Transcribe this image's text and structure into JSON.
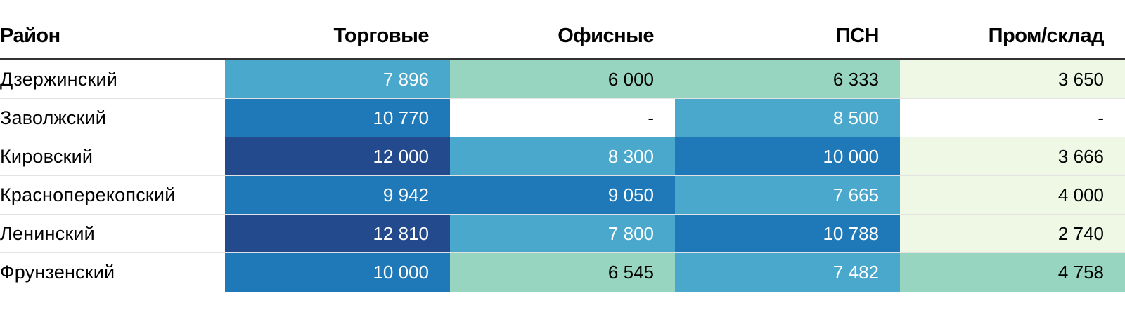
{
  "chart_data": {
    "type": "table",
    "columns": [
      "Район",
      "Торговые",
      "Офисные",
      "ПСН",
      "Пром/склад"
    ],
    "rows": [
      {
        "label": "Дзержинский",
        "values": [
          "7 896",
          "6 000",
          "6 333",
          "3 650"
        ],
        "colors": [
          "#4aa8cc",
          "#98d5c0",
          "#98d5c0",
          "#eef8e5"
        ]
      },
      {
        "label": "Заволжский",
        "values": [
          "10 770",
          "-",
          "8 500",
          "-"
        ],
        "colors": [
          "#1f79b8",
          "#ffffff",
          "#4aa8cc",
          "#ffffff"
        ]
      },
      {
        "label": "Кировский",
        "values": [
          "12 000",
          "8 300",
          "10 000",
          "3 666"
        ],
        "colors": [
          "#244a8e",
          "#4aa8cc",
          "#1f79b8",
          "#eef8e5"
        ]
      },
      {
        "label": "Красноперекопский",
        "values": [
          "9 942",
          "9 050",
          "7 665",
          "4 000"
        ],
        "colors": [
          "#1f79b8",
          "#1f79b8",
          "#4aa8cc",
          "#eef8e5"
        ]
      },
      {
        "label": "Ленинский",
        "values": [
          "12 810",
          "7 800",
          "10 788",
          "2 740"
        ],
        "colors": [
          "#244a8e",
          "#4aa8cc",
          "#1f79b8",
          "#eef8e5"
        ]
      },
      {
        "label": "Фрунзенский",
        "values": [
          "10 000",
          "6 545",
          "7 482",
          "4 758"
        ],
        "colors": [
          "#1f79b8",
          "#98d5c0",
          "#4aa8cc",
          "#98d5c0"
        ]
      }
    ],
    "text_colors": {
      "dark": "#000000",
      "light": "#ffffff"
    }
  }
}
